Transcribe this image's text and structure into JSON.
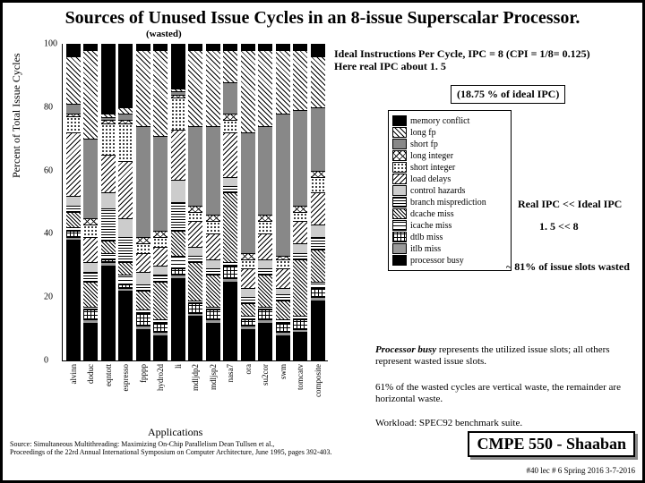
{
  "title": "Sources of Unused Issue Cycles in an 8-issue Superscalar Processor.",
  "wasted_label": "(wasted)",
  "axes": {
    "y_label": "Percent of Total Issue Cycles",
    "x_label": "Applications",
    "y_ticks": [
      0,
      20,
      40,
      60,
      80,
      100
    ]
  },
  "notes": {
    "ideal_line1": "Ideal Instructions Per Cycle, IPC = 8   (CPI = 1/8= 0.125)",
    "ideal_line2": "Here real IPC about 1. 5",
    "box_1875": "(18.75 %   of ideal IPC)",
    "real_ipc_line1": "Real IPC  <<   Ideal IPC",
    "real_ipc_line2": "1. 5         <<    8",
    "wasted81": "~ 81% of issue slots wasted",
    "pb_em": "Processor busy",
    "pb_rest": " represents the utilized issue slots; all others represent wasted issue slots.",
    "pct61": "61% of the wasted cycles are vertical waste, the remainder are horizontal waste.",
    "workload": "Workload: SPEC92 benchmark suite."
  },
  "footer": {
    "source": "Source:  Simultaneous Multithreading: Maximizing On-Chip Parallelism   Dean Tullsen et al.,\nProceedings of the 22rd Annual International Symposium on Computer Architecture, June 1995, pages 392-403.",
    "cmpe": "CMPE 550 - Shaaban",
    "lec": "#40  lec # 6    Spring 2016   3-7-2016"
  },
  "legend": [
    {
      "label": "memory conflict",
      "fill": "#000",
      "pattern": "solid"
    },
    {
      "label": "long fp",
      "fill": "#fff",
      "pattern": "diag"
    },
    {
      "label": "short fp",
      "fill": "#888",
      "pattern": "solid"
    },
    {
      "label": "long integer",
      "fill": "#fff",
      "pattern": "cross"
    },
    {
      "label": "short integer",
      "fill": "#fff",
      "pattern": "dots"
    },
    {
      "label": "load delays",
      "fill": "#fff",
      "pattern": "rdiag"
    },
    {
      "label": "control hazards",
      "fill": "#ccc",
      "pattern": "solid"
    },
    {
      "label": "branch misprediction",
      "fill": "#fff",
      "pattern": "hline"
    },
    {
      "label": "dcache miss",
      "fill": "#fff",
      "pattern": "diag2"
    },
    {
      "label": "icache miss",
      "fill": "#fff",
      "pattern": "hdash"
    },
    {
      "label": "dtlb miss",
      "fill": "#fff",
      "pattern": "brick"
    },
    {
      "label": "itlb miss",
      "fill": "#999",
      "pattern": "solid"
    },
    {
      "label": "processor busy",
      "fill": "#000",
      "pattern": "solid"
    }
  ],
  "patterns": {
    "solid": "",
    "diag": "repeating-linear-gradient(45deg,#000 0 1px,#fff 1px 4px)",
    "cross": "repeating-linear-gradient(45deg,#000 0 1px,transparent 1px 5px),repeating-linear-gradient(-45deg,#000 0 1px,#fff 1px 5px)",
    "dots": "radial-gradient(#000 1px,#fff 1px) 0 0/4px 4px",
    "rdiag": "repeating-linear-gradient(-45deg,#000 0 1px,#fff 1px 4px)",
    "hline": "repeating-linear-gradient(0deg,#000 0 1px,#fff 1px 3px)",
    "diag2": "repeating-linear-gradient(45deg,#000 0 1px,#fff 1px 3px)",
    "hdash": "repeating-linear-gradient(0deg,#000 0 1px,#fff 1px 4px)",
    "brick": "repeating-linear-gradient(0deg,#000 0 1px,transparent 1px 4px),repeating-linear-gradient(90deg,#000 0 1px,#fff 1px 4px)"
  },
  "chart": {
    "categories": [
      "alvinn",
      "doduc",
      "eqntott",
      "espresso",
      "fpppp",
      "hydro2d",
      "li",
      "mdljdp2",
      "mdljsp2",
      "nasa7",
      "ora",
      "su2cor",
      "swm",
      "tomcatv",
      "composite"
    ],
    "series": [
      "processor busy",
      "itlb miss",
      "dtlb miss",
      "icache miss",
      "dcache miss",
      "branch misprediction",
      "control hazards",
      "load delays",
      "short integer",
      "long integer",
      "short fp",
      "long fp",
      "memory conflict"
    ],
    "data": [
      [
        38,
        1,
        2,
        1,
        5,
        2,
        3,
        20,
        5,
        1,
        3,
        15,
        4
      ],
      [
        12,
        1,
        3,
        1,
        8,
        3,
        3,
        8,
        4,
        2,
        25,
        28,
        2
      ],
      [
        30,
        1,
        1,
        2,
        4,
        10,
        5,
        12,
        10,
        1,
        1,
        1,
        22
      ],
      [
        22,
        1,
        1,
        3,
        4,
        8,
        6,
        18,
        12,
        1,
        2,
        2,
        20
      ],
      [
        10,
        1,
        4,
        1,
        6,
        2,
        4,
        6,
        3,
        2,
        35,
        24,
        2
      ],
      [
        8,
        1,
        3,
        1,
        12,
        2,
        3,
        6,
        3,
        2,
        30,
        27,
        2
      ],
      [
        26,
        1,
        2,
        4,
        8,
        9,
        7,
        16,
        10,
        1,
        1,
        1,
        14
      ],
      [
        14,
        1,
        3,
        1,
        12,
        2,
        3,
        8,
        3,
        2,
        25,
        24,
        2
      ],
      [
        12,
        1,
        3,
        1,
        10,
        2,
        3,
        8,
        4,
        2,
        28,
        24,
        2
      ],
      [
        25,
        1,
        4,
        1,
        22,
        2,
        3,
        14,
        4,
        2,
        10,
        10,
        2
      ],
      [
        10,
        1,
        2,
        1,
        4,
        2,
        3,
        6,
        3,
        2,
        38,
        26,
        2
      ],
      [
        12,
        1,
        3,
        1,
        10,
        2,
        3,
        8,
        4,
        2,
        28,
        24,
        2
      ],
      [
        8,
        1,
        3,
        1,
        6,
        2,
        2,
        6,
        3,
        1,
        45,
        20,
        2
      ],
      [
        9,
        1,
        3,
        1,
        18,
        2,
        3,
        7,
        3,
        2,
        30,
        19,
        2
      ],
      [
        19,
        1,
        3,
        2,
        10,
        4,
        4,
        10,
        5,
        2,
        20,
        16,
        4
      ]
    ]
  }
}
